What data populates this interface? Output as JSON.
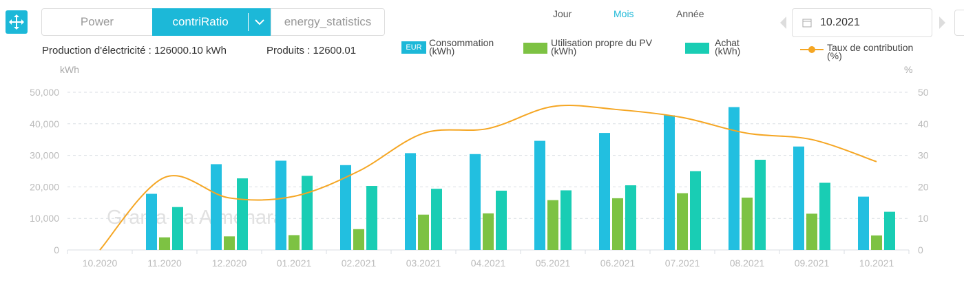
{
  "toolbar": {
    "tabs": [
      "Power",
      "contriRatio",
      "energy_statistics"
    ],
    "periods": [
      "Jour",
      "Mois",
      "Année"
    ],
    "date": "10.2021"
  },
  "summary": {
    "production": "Production d'électricité : 126000.10 kWh",
    "produits": "Produits : 12600.01",
    "currency": "EUR"
  },
  "chart_data": {
    "type": "bar",
    "y_label": "kWh",
    "y2_label": "%",
    "watermark": "Granja La Almenara",
    "categories": [
      "10.2020",
      "11.2020",
      "12.2020",
      "01.2021",
      "02.2021",
      "03.2021",
      "04.2021",
      "05.2021",
      "06.2021",
      "07.2021",
      "08.2021",
      "09.2021",
      "10.2021"
    ],
    "series": [
      {
        "name": "Consommation (kWh)",
        "color": "#22bfe0",
        "values": [
          null,
          17800,
          27200,
          28300,
          26900,
          30700,
          30400,
          34600,
          37100,
          42700,
          45300,
          32800,
          16900
        ]
      },
      {
        "name": "Utilisation propre du PV (kWh)",
        "color": "#7dc243",
        "values": [
          null,
          4000,
          4300,
          4700,
          6600,
          11200,
          11600,
          15800,
          16400,
          18000,
          16600,
          11500,
          4600
        ]
      },
      {
        "name": "Achat (kWh)",
        "color": "#19cdb4",
        "values": [
          null,
          13600,
          22700,
          23500,
          20300,
          19400,
          18800,
          18900,
          20500,
          25000,
          28600,
          21300,
          12100
        ]
      },
      {
        "name": "Taux de contribution (%)",
        "color": "#f5a623",
        "type": "line",
        "axis": "y2",
        "values": [
          0,
          23,
          16.5,
          17,
          25,
          37,
          38.5,
          45.5,
          44.5,
          42,
          37,
          35,
          28
        ]
      }
    ],
    "ylim": [
      0,
      50000
    ],
    "yticks": [
      0,
      {
        "value": 10000,
        "label": "10,000"
      },
      {
        "value": 20000,
        "label": "20,000"
      },
      {
        "value": 30000,
        "label": "30,000"
      },
      {
        "value": 40000,
        "label": "40,000"
      },
      {
        "value": 50000,
        "label": "50,000"
      }
    ],
    "y2lim": [
      0,
      50
    ],
    "y2ticks": [
      0,
      10,
      20,
      30,
      40,
      50
    ],
    "grid": true
  }
}
